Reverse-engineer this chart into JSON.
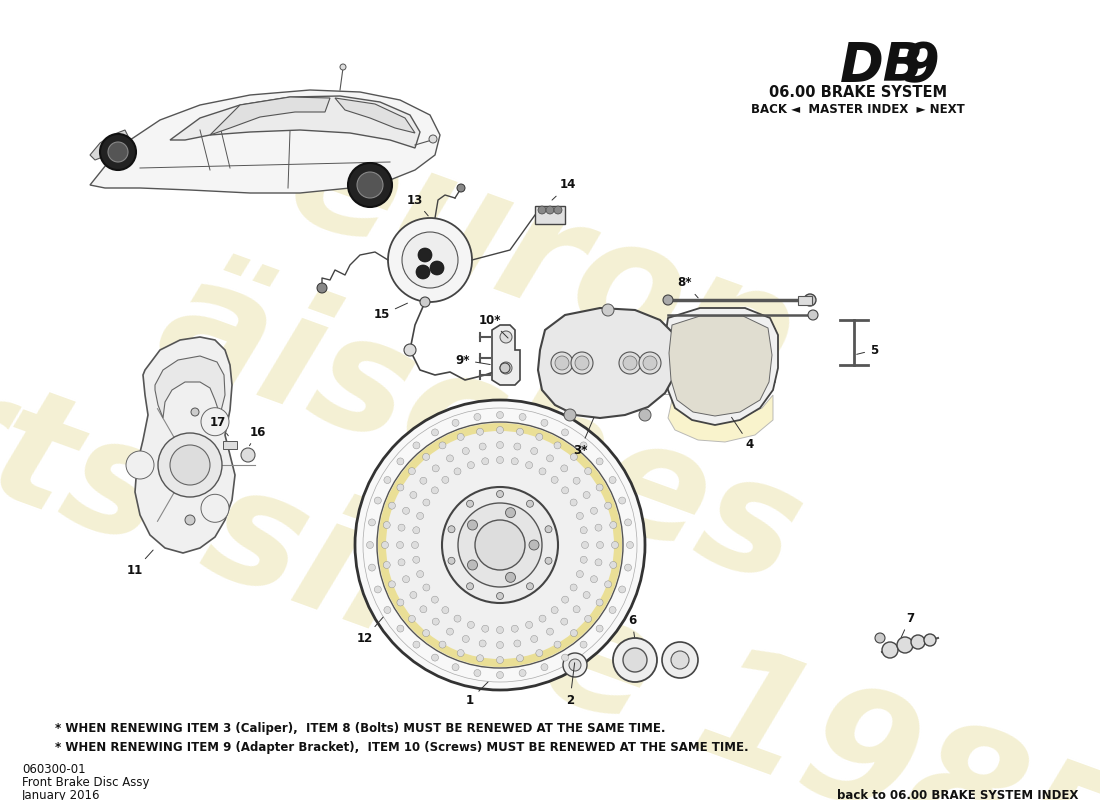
{
  "title_db": "DB",
  "title_9": "9",
  "subtitle": "06.00 BRAKE SYSTEM",
  "nav": "BACK ◄  MASTER INDEX  ► NEXT",
  "bg_color": "#ffffff",
  "part_number": "060300-01",
  "part_name": "Front Brake Disc Assy",
  "date": "January 2016",
  "back_link": "back to 06.00 BRAKE SYSTEM INDEX",
  "note1": "* WHEN RENEWING ITEM 3 (Caliper),  ITEM 8 (Bolts) MUST BE RENEWED AT THE SAME TIME.",
  "note2": "* WHEN RENEWING ITEM 9 (Adapter Bracket),  ITEM 10 (Screws) MUST BE RENEWED AT THE SAME TIME.",
  "watermark_color": "#e8dfa0",
  "header_color": "#111111"
}
